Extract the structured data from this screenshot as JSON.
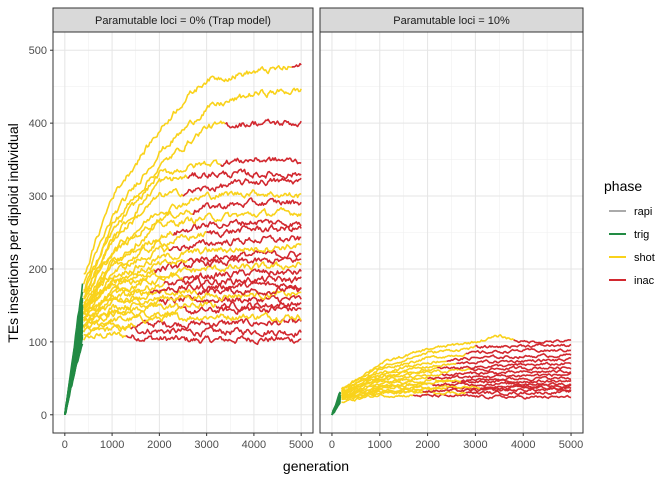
{
  "chart_data": {
    "type": "line",
    "xlabel": "generation",
    "ylabel": "TEs insertions per diploid individual",
    "xlim": [
      -250,
      5250
    ],
    "ylim": [
      -25,
      525
    ],
    "x_ticks": [
      0,
      1000,
      2000,
      3000,
      4000,
      5000
    ],
    "x_tick_labels": [
      "0",
      "1000",
      "2000",
      "3000",
      "4000",
      "5000"
    ],
    "y_ticks": [
      0,
      100,
      200,
      300,
      400,
      500
    ],
    "y_tick_labels": [
      "0",
      "100",
      "200",
      "300",
      "400",
      "500"
    ],
    "grid": true,
    "legend": {
      "title": "phase",
      "placement": "right",
      "entries": [
        {
          "label": "rapi",
          "color": "#AAAAAA"
        },
        {
          "label": "trig",
          "color": "#228B44"
        },
        {
          "label": "shot",
          "color": "#F9D21B"
        },
        {
          "label": "inac",
          "color": "#D2282F"
        }
      ]
    },
    "facets": [
      {
        "strip": "Paramutable loci = 0% (Trap model)",
        "series": [
          {
            "x": [
              0,
              400,
              1000,
              2000,
              2500,
              3000,
              4000,
              5000
            ],
            "y": [
              0,
              190,
              300,
              390,
              430,
              460,
              470,
              478
            ],
            "inac_from": 4800
          },
          {
            "x": [
              0,
              400,
              1000,
              2000,
              3000,
              4000,
              5000
            ],
            "y": [
              0,
              180,
              270,
              360,
              420,
              440,
              445
            ],
            "inac_from": null
          },
          {
            "x": [
              0,
              400,
              1000,
              2000,
              3000,
              4000,
              5000
            ],
            "y": [
              0,
              170,
              260,
              340,
              395,
              400,
              400
            ],
            "inac_from": 3400
          },
          {
            "x": [
              0,
              400,
              1000,
              2000,
              3000,
              4000,
              5000
            ],
            "y": [
              0,
              170,
              250,
              330,
              345,
              350,
              348
            ],
            "inac_from": 3300
          },
          {
            "x": [
              0,
              400,
              1000,
              2000,
              3000,
              4000,
              5000
            ],
            "y": [
              0,
              160,
              240,
              320,
              330,
              330,
              330
            ],
            "inac_from": 2600
          },
          {
            "x": [
              0,
              400,
              1000,
              2000,
              3000,
              4000,
              5000
            ],
            "y": [
              0,
              165,
              240,
              300,
              310,
              320,
              320
            ],
            "inac_from": 2500
          },
          {
            "x": [
              0,
              400,
              1000,
              2000,
              3000,
              4000,
              5000
            ],
            "y": [
              0,
              160,
              225,
              280,
              300,
              305,
              300
            ],
            "inac_from": null
          },
          {
            "x": [
              0,
              400,
              1000,
              2000,
              3000,
              4000,
              5000
            ],
            "y": [
              0,
              160,
              220,
              270,
              285,
              290,
              292
            ],
            "inac_from": 2700
          },
          {
            "x": [
              0,
              400,
              1000,
              2000,
              3000,
              4000,
              5000
            ],
            "y": [
              0,
              155,
              210,
              260,
              270,
              275,
              278
            ],
            "inac_from": null
          },
          {
            "x": [
              0,
              400,
              1000,
              2000,
              3000,
              4000,
              5000
            ],
            "y": [
              0,
              150,
              205,
              245,
              260,
              265,
              262
            ],
            "inac_from": 2300
          },
          {
            "x": [
              0,
              400,
              1000,
              2000,
              3000,
              4000,
              5000
            ],
            "y": [
              0,
              150,
              200,
              235,
              248,
              255,
              255
            ],
            "inac_from": 3000
          },
          {
            "x": [
              0,
              400,
              1000,
              2000,
              3000,
              4000,
              5000
            ],
            "y": [
              0,
              150,
              195,
              225,
              235,
              240,
              240
            ],
            "inac_from": 2200
          },
          {
            "x": [
              0,
              400,
              1000,
              2000,
              3000,
              4000,
              5000
            ],
            "y": [
              0,
              145,
              190,
              215,
              225,
              228,
              232
            ],
            "inac_from": null
          },
          {
            "x": [
              0,
              400,
              1000,
              2000,
              3000,
              4000,
              5000
            ],
            "y": [
              0,
              145,
              185,
              205,
              215,
              220,
              220
            ],
            "inac_from": 2600
          },
          {
            "x": [
              0,
              400,
              1000,
              2000,
              3000,
              4000,
              5000
            ],
            "y": [
              0,
              140,
              180,
              200,
              208,
              210,
              212
            ],
            "inac_from": 1900
          },
          {
            "x": [
              0,
              400,
              1000,
              2000,
              3000,
              4000,
              5000
            ],
            "y": [
              0,
              140,
              175,
              192,
              200,
              202,
              205
            ],
            "inac_from": null
          },
          {
            "x": [
              0,
              400,
              1000,
              2000,
              3000,
              4000,
              5000
            ],
            "y": [
              0,
              138,
              170,
              185,
              190,
              195,
              195
            ],
            "inac_from": 2500
          },
          {
            "x": [
              0,
              400,
              1000,
              2000,
              3000,
              4000,
              5000
            ],
            "y": [
              0,
              135,
              165,
              178,
              182,
              185,
              185
            ],
            "inac_from": 2100
          },
          {
            "x": [
              0,
              400,
              1000,
              2000,
              3000,
              4000,
              5000
            ],
            "y": [
              0,
              135,
              160,
              172,
              175,
              178,
              178
            ],
            "inac_from": 1800
          },
          {
            "x": [
              0,
              400,
              1000,
              2000,
              3000,
              4000,
              5000
            ],
            "y": [
              0,
              130,
              158,
              165,
              170,
              170,
              172
            ],
            "inac_from": 2800
          },
          {
            "x": [
              0,
              400,
              1000,
              2000,
              3000,
              4000,
              5000
            ],
            "y": [
              0,
              130,
              152,
              160,
              163,
              165,
              165
            ],
            "inac_from": null
          },
          {
            "x": [
              0,
              400,
              1000,
              2000,
              3000,
              4000,
              5000
            ],
            "y": [
              0,
              128,
              148,
              155,
              158,
              158,
              158
            ],
            "inac_from": 2000
          },
          {
            "x": [
              0,
              400,
              1000,
              2000,
              3000,
              4000,
              5000
            ],
            "y": [
              0,
              125,
              142,
              148,
              150,
              150,
              152
            ],
            "inac_from": 3200
          },
          {
            "x": [
              0,
              400,
              1000,
              2000,
              3000,
              4000,
              5000
            ],
            "y": [
              0,
              122,
              138,
              140,
              142,
              145,
              145
            ],
            "inac_from": 2400
          },
          {
            "x": [
              0,
              400,
              1000,
              2000,
              3000,
              4000,
              5000
            ],
            "y": [
              0,
              118,
              130,
              132,
              135,
              135,
              135
            ],
            "inac_from": null
          },
          {
            "x": [
              0,
              400,
              1000,
              2000,
              3000,
              4000,
              5000
            ],
            "y": [
              0,
              115,
              122,
              125,
              125,
              126,
              126
            ],
            "inac_from": 1500
          },
          {
            "x": [
              0,
              400,
              1000,
              2000,
              3000,
              4000,
              5000
            ],
            "y": [
              0,
              110,
              118,
              115,
              113,
              115,
              113
            ],
            "inac_from": 1400
          },
          {
            "x": [
              0,
              400,
              1000,
              2000,
              3000,
              4000,
              5000
            ],
            "y": [
              0,
              105,
              110,
              104,
              102,
              104,
              103
            ],
            "inac_from": 1300
          }
        ]
      },
      {
        "strip": "Paramutable loci = 10%",
        "series": [
          {
            "x": [
              0,
              200,
              1000,
              2000,
              3000,
              3500,
              4000,
              5000
            ],
            "y": [
              0,
              35,
              70,
              90,
              100,
              108,
              100,
              101
            ],
            "inac_from": 3800
          },
          {
            "x": [
              0,
              200,
              1000,
              2000,
              3000,
              4000,
              5000
            ],
            "y": [
              0,
              35,
              65,
              85,
              92,
              95,
              95
            ],
            "inac_from": 3000
          },
          {
            "x": [
              0,
              200,
              1000,
              2000,
              3000,
              4000,
              5000
            ],
            "y": [
              0,
              33,
              62,
              78,
              85,
              88,
              88
            ],
            "inac_from": 2800
          },
          {
            "x": [
              0,
              200,
              1000,
              2000,
              3000,
              4000,
              5000
            ],
            "y": [
              0,
              32,
              58,
              72,
              78,
              80,
              82
            ],
            "inac_from": 2400
          },
          {
            "x": [
              0,
              200,
              1000,
              2000,
              3000,
              4000,
              5000
            ],
            "y": [
              0,
              30,
              55,
              66,
              72,
              74,
              75
            ],
            "inac_from": 2600
          },
          {
            "x": [
              0,
              200,
              1000,
              2000,
              3000,
              4000,
              5000
            ],
            "y": [
              0,
              30,
              52,
              62,
              66,
              68,
              70
            ],
            "inac_from": 2200
          },
          {
            "x": [
              0,
              200,
              1000,
              2000,
              3000,
              4000,
              5000
            ],
            "y": [
              0,
              28,
              50,
              58,
              62,
              64,
              65
            ],
            "inac_from": 2900
          },
          {
            "x": [
              0,
              200,
              1000,
              2000,
              3000,
              4000,
              5000
            ],
            "y": [
              0,
              28,
              47,
              54,
              57,
              58,
              60
            ],
            "inac_from": 2300
          },
          {
            "x": [
              0,
              200,
              1000,
              2000,
              3000,
              4000,
              5000
            ],
            "y": [
              0,
              27,
              45,
              50,
              52,
              54,
              55
            ],
            "inac_from": 2000
          },
          {
            "x": [
              0,
              200,
              1000,
              2000,
              3000,
              4000,
              5000
            ],
            "y": [
              0,
              26,
              42,
              47,
              48,
              50,
              50
            ],
            "inac_from": 2700
          },
          {
            "x": [
              0,
              200,
              1000,
              2000,
              3000,
              4000,
              5000
            ],
            "y": [
              0,
              25,
              40,
              44,
              45,
              46,
              46
            ],
            "inac_from": 2500
          },
          {
            "x": [
              0,
              200,
              1000,
              2000,
              3000,
              4000,
              5000
            ],
            "y": [
              0,
              25,
              38,
              41,
              42,
              43,
              42
            ],
            "inac_from": 2100
          },
          {
            "x": [
              0,
              200,
              1000,
              2000,
              3000,
              4000,
              5000
            ],
            "y": [
              0,
              24,
              36,
              38,
              39,
              40,
              40
            ],
            "inac_from": 3100
          },
          {
            "x": [
              0,
              200,
              1000,
              2000,
              3000,
              4000,
              5000
            ],
            "y": [
              0,
              23,
              34,
              36,
              36,
              37,
              36
            ],
            "inac_from": 2400
          },
          {
            "x": [
              0,
              200,
              1000,
              2000,
              3000,
              4000,
              5000
            ],
            "y": [
              0,
              22,
              32,
              33,
              33,
              34,
              34
            ],
            "inac_from": 1900
          },
          {
            "x": [
              0,
              200,
              1000,
              2000,
              3000,
              4000,
              5000
            ],
            "y": [
              0,
              20,
              30,
              31,
              30,
              30,
              31
            ],
            "inac_from": 2800
          },
          {
            "x": [
              0,
              200,
              1000,
              2000,
              3000,
              4000,
              5000
            ],
            "y": [
              0,
              18,
              27,
              26,
              25,
              24,
              24
            ],
            "inac_from": 1700
          }
        ]
      }
    ]
  }
}
